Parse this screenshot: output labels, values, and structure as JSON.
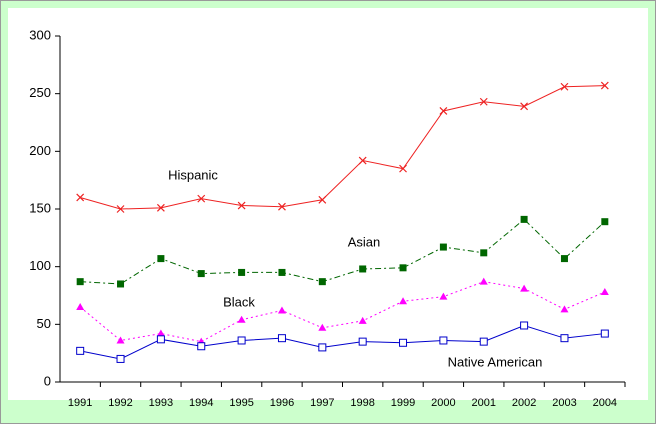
{
  "chart_data": {
    "type": "line",
    "categories": [
      "1991",
      "1992",
      "1993",
      "1994",
      "1995",
      "1996",
      "1997",
      "1998",
      "1999",
      "2000",
      "2001",
      "2002",
      "2003",
      "2004"
    ],
    "series": [
      {
        "name": "Hispanic",
        "color": "#ee2222",
        "marker": "x",
        "dash": "solid",
        "values": [
          160,
          150,
          151,
          159,
          153,
          152,
          158,
          192,
          185,
          235,
          243,
          239,
          256,
          257
        ]
      },
      {
        "name": "Asian",
        "color": "#006600",
        "marker": "filled-square",
        "dash": "dash-dot",
        "values": [
          87,
          85,
          107,
          94,
          95,
          95,
          87,
          98,
          99,
          117,
          112,
          141,
          107,
          139
        ]
      },
      {
        "name": "Black",
        "color": "#ff00ff",
        "marker": "triangle",
        "dash": "dotted",
        "values": [
          65,
          36,
          42,
          35,
          54,
          62,
          47,
          53,
          70,
          74,
          87,
          81,
          63,
          78
        ]
      },
      {
        "name": "Native American",
        "color": "#0000cc",
        "marker": "open-square",
        "dash": "solid",
        "values": [
          27,
          20,
          37,
          31,
          36,
          38,
          30,
          35,
          34,
          36,
          35,
          49,
          38,
          42
        ]
      }
    ],
    "ylim": [
      0,
      300
    ],
    "yticks": [
      0,
      50,
      100,
      150,
      200,
      250,
      300
    ],
    "grid": false
  }
}
